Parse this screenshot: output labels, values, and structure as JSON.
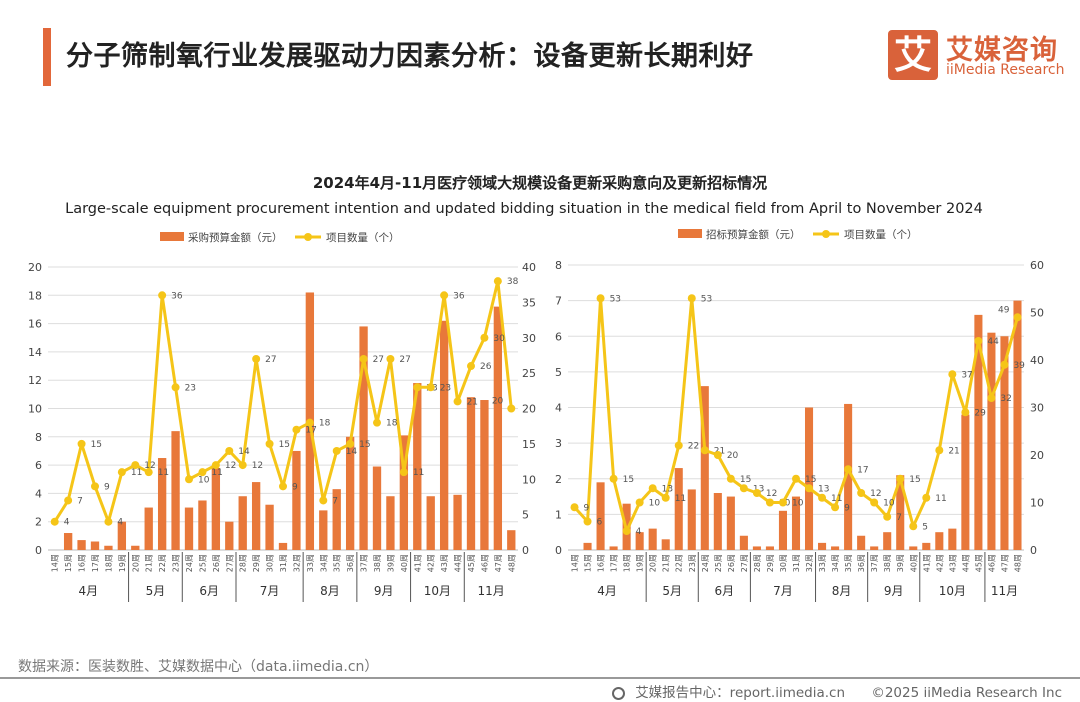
{
  "header": {
    "title": "分子筛制氧行业发展驱动力因素分析：设备更新长期利好",
    "logo": {
      "glyph": "艾",
      "cn": "艾媒咨询",
      "en": "iiMedia Research"
    }
  },
  "colors": {
    "accent": "#e2673a",
    "bar": "#e8783a",
    "line": "#f5c518",
    "grid": "#dddddd"
  },
  "chart_title": "2024年4月-11月医疗领域大规模设备更新采购意向及更新招标情况",
  "chart_subtitle": "Large-scale equipment procurement intention and updated bidding situation in the medical field from April to November 2024",
  "chart_data": [
    {
      "type": "bar+line",
      "legend": [
        "采购预算金额（元）",
        "项目数量（个）"
      ],
      "legend_placement": "top",
      "categories": [
        "14周",
        "15周",
        "16周",
        "17周",
        "18周",
        "19周",
        "20周",
        "21周",
        "22周",
        "23周",
        "24周",
        "25周",
        "26周",
        "27周",
        "28周",
        "29周",
        "30周",
        "31周",
        "32周",
        "33周",
        "34周",
        "35周",
        "36周",
        "37周",
        "38周",
        "39周",
        "40周",
        "41周",
        "42周",
        "43周",
        "44周",
        "45周",
        "46周",
        "47周",
        "48周"
      ],
      "month_groups": [
        {
          "label": "4月",
          "weeks": 6
        },
        {
          "label": "5月",
          "weeks": 4
        },
        {
          "label": "6月",
          "weeks": 4
        },
        {
          "label": "7月",
          "weeks": 5
        },
        {
          "label": "8月",
          "weeks": 4
        },
        {
          "label": "9月",
          "weeks": 4
        },
        {
          "label": "10月",
          "weeks": 4
        },
        {
          "label": "11月",
          "weeks": 4
        }
      ],
      "bar_values": [
        0,
        1.2,
        0.7,
        0.6,
        0.3,
        2.0,
        0.3,
        3.0,
        6.5,
        8.4,
        3.0,
        3.5,
        5.8,
        2.0,
        3.8,
        4.8,
        3.2,
        0.5,
        7.0,
        18.2,
        2.8,
        4.3,
        8.0,
        15.8,
        5.9,
        3.8,
        8.1,
        11.8,
        3.8,
        16.2,
        3.9,
        10.8,
        10.6,
        17.2,
        1.4
      ],
      "line_values": [
        4,
        7,
        15,
        9,
        4,
        11,
        12,
        11,
        36,
        23,
        10,
        11,
        12,
        14,
        12,
        27,
        15,
        9,
        17,
        18,
        7,
        14,
        15,
        27,
        18,
        27,
        11,
        23,
        23,
        36,
        21,
        26,
        30,
        38,
        20
      ],
      "y_left": {
        "min": 0,
        "max": 20,
        "step": 2
      },
      "y_right": {
        "min": 0,
        "max": 40,
        "step": 5
      },
      "grid": true
    },
    {
      "type": "bar+line",
      "legend": [
        "招标预算金额（元）",
        "项目数量（个）"
      ],
      "legend_placement": "top",
      "categories": [
        "14周",
        "15周",
        "16周",
        "17周",
        "18周",
        "19周",
        "20周",
        "21周",
        "22周",
        "23周",
        "24周",
        "25周",
        "26周",
        "27周",
        "28周",
        "29周",
        "30周",
        "31周",
        "32周",
        "33周",
        "34周",
        "35周",
        "36周",
        "37周",
        "38周",
        "39周",
        "40周",
        "41周",
        "42周",
        "43周",
        "44周",
        "45周",
        "46周",
        "47周",
        "48周"
      ],
      "month_groups": [
        {
          "label": "4月",
          "weeks": 6
        },
        {
          "label": "5月",
          "weeks": 4
        },
        {
          "label": "6月",
          "weeks": 4
        },
        {
          "label": "7月",
          "weeks": 5
        },
        {
          "label": "8月",
          "weeks": 4
        },
        {
          "label": "9月",
          "weeks": 4
        },
        {
          "label": "10月",
          "weeks": 5
        },
        {
          "label": "11月",
          "weeks": 3
        }
      ],
      "bar_values": [
        0,
        0.2,
        1.9,
        0.1,
        1.3,
        0.5,
        0.6,
        0.3,
        2.3,
        1.7,
        4.6,
        1.6,
        1.5,
        0.4,
        0.1,
        0.1,
        1.1,
        1.5,
        4.0,
        0.2,
        0.1,
        4.1,
        0.4,
        0.1,
        0.5,
        2.1,
        0.1,
        0.2,
        0.5,
        0.6,
        3.8,
        6.6,
        6.1,
        6.0,
        7.0
      ],
      "line_values": [
        9,
        6,
        53,
        15,
        4,
        10,
        13,
        11,
        22,
        53,
        21,
        20,
        15,
        13,
        12,
        10,
        10,
        15,
        13,
        11,
        9,
        17,
        12,
        10,
        7,
        15,
        5,
        11,
        21,
        37,
        29,
        44,
        32,
        39,
        49
      ],
      "y_left": {
        "min": 0,
        "max": 8,
        "step": 1
      },
      "y_right": {
        "min": 0,
        "max": 60,
        "step": 10
      },
      "grid": true
    }
  ],
  "source": "数据来源：医装数胜、艾媒数据中心（data.iimedia.cn）",
  "footer": {
    "icon": "globe-icon",
    "report": "艾媒报告中心：report.iimedia.cn",
    "copyright": "©2025  iiMedia Research  Inc"
  }
}
